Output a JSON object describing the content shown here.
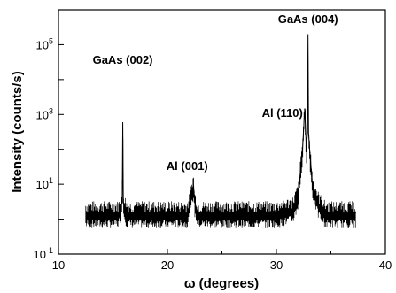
{
  "chart_data": {
    "type": "line",
    "xlabel": "ω (degrees)",
    "ylabel": "Intensity (counts/s)",
    "xlim": [
      10,
      40
    ],
    "ylim": [
      0.1,
      1000000
    ],
    "y_scale": "log",
    "grid": false,
    "x_ticks": [
      10,
      20,
      30,
      40
    ],
    "y_ticks": [
      {
        "value": 0.1,
        "base": "10",
        "exp": "-1"
      },
      {
        "value": 10,
        "base": "10",
        "exp": "1"
      },
      {
        "value": 1000,
        "base": "10",
        "exp": "3"
      },
      {
        "value": 100000,
        "base": "10",
        "exp": "5"
      }
    ],
    "series": [
      {
        "x": [
          12.5,
          15.5,
          15.85,
          15.9,
          15.95,
          16.3,
          21.8,
          22.1,
          22.3,
          22.4,
          22.5,
          22.8,
          30.0,
          31.5,
          32.0,
          32.4,
          32.6,
          32.75,
          32.85,
          32.9,
          32.95,
          33.05,
          33.3,
          33.8,
          34.5,
          37.3
        ],
        "y": [
          1.5,
          1.5,
          3,
          600,
          3,
          1.5,
          1.5,
          3,
          8,
          9,
          3,
          1.5,
          1.5,
          2,
          5,
          100,
          1500,
          100,
          300,
          200000,
          300,
          100,
          10,
          3,
          1.5,
          1.5
        ]
      }
    ],
    "annotations": [
      {
        "text": "GaAs (002)",
        "x": 15.9
      },
      {
        "text": "Al (001)",
        "x": 22.3
      },
      {
        "text": "Al (110)",
        "x": 32.5
      },
      {
        "text": "GaAs (004)",
        "x": 32.9
      }
    ],
    "colors": {
      "line": "#000000",
      "axes": "#000000",
      "background": "#ffffff"
    }
  }
}
